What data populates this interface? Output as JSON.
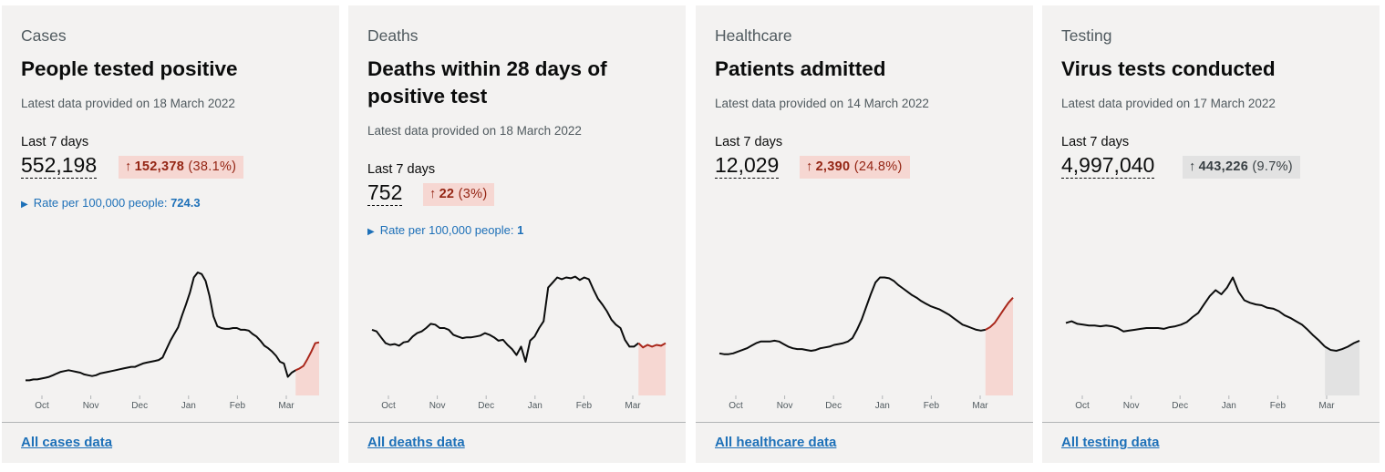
{
  "colors": {
    "accent_red": "#a9271b",
    "highlight_red": "#f6d7d2",
    "neutral": "#0b0c0c",
    "highlight_grey": "#e2e2e2",
    "link": "#1d70b8"
  },
  "cards": [
    {
      "caption": "Cases",
      "headline": "People tested positive",
      "latest": "Latest data provided on 18 March 2022",
      "metric_label": "Last 7 days",
      "metric_value": "552,198",
      "change_arrow": "↑",
      "change_value": "152,378",
      "change_pct": "(38.1%)",
      "change_style": "up",
      "rate_label": "Rate per 100,000 people:",
      "rate_value": "724.3",
      "link": "All cases data",
      "icon": "triangle-right-icon",
      "chart_data": {
        "type": "line",
        "x_ticks": [
          "Oct",
          "Nov",
          "Dec",
          "Jan",
          "Feb",
          "Mar"
        ],
        "ylim": [
          0,
          160
        ],
        "highlight_last_days": 7,
        "series": [
          {
            "values": [
              18,
              18,
              19,
              19,
              20,
              21,
              22,
              24,
              26,
              28,
              29,
              30,
              29,
              28,
              27,
              25,
              24,
              23,
              24,
              26,
              27,
              28,
              29,
              30,
              31,
              32,
              33,
              34,
              34,
              36,
              38,
              39,
              40,
              41,
              42,
              45,
              55,
              65,
              73,
              81,
              95,
              108,
              122,
              140,
              146,
              144,
              136,
              118,
              94,
              82,
              80,
              79,
              79,
              80,
              80,
              78,
              78,
              77,
              73,
              70,
              65,
              59,
              56,
              52,
              47,
              40,
              38,
              22,
              27,
              30,
              32,
              35,
              43,
              52,
              62,
              63
            ]
          }
        ]
      }
    },
    {
      "caption": "Deaths",
      "headline": "Deaths within 28 days of positive test",
      "latest": "Latest data provided on 18 March 2022",
      "metric_label": "Last 7 days",
      "metric_value": "752",
      "change_arrow": "↑",
      "change_value": "22",
      "change_pct": "(3%)",
      "change_style": "up",
      "rate_label": "Rate per 100,000 people:",
      "rate_value": "1",
      "link": "All deaths data",
      "icon": "triangle-right-icon",
      "chart_data": {
        "type": "line",
        "x_ticks": [
          "Oct",
          "Nov",
          "Dec",
          "Jan",
          "Feb",
          "Mar"
        ],
        "ylim": [
          0,
          160
        ],
        "highlight_last_days": 7,
        "series": [
          {
            "values": [
              78,
              76,
              69,
              62,
              60,
              61,
              59,
              63,
              64,
              70,
              74,
              76,
              80,
              85,
              84,
              80,
              80,
              78,
              72,
              70,
              68,
              69,
              69,
              70,
              71,
              74,
              72,
              69,
              65,
              66,
              60,
              55,
              48,
              58,
              40,
              65,
              70,
              80,
              88,
              128,
              134,
              140,
              138,
              140,
              139,
              141,
              137,
              140,
              138,
              126,
              115,
              108,
              100,
              90,
              84,
              80,
              66,
              58,
              58,
              62,
              57,
              60,
              58,
              60,
              59,
              62
            ]
          }
        ]
      }
    },
    {
      "caption": "Healthcare",
      "headline": "Patients admitted",
      "latest": "Latest data provided on 14 March 2022",
      "metric_label": "Last 7 days",
      "metric_value": "12,029",
      "change_arrow": "↑",
      "change_value": "2,390",
      "change_pct": "(24.8%)",
      "change_style": "up",
      "rate_label": "",
      "rate_value": "",
      "link": "All healthcare data",
      "icon": "",
      "chart_data": {
        "type": "line",
        "x_ticks": [
          "Oct",
          "Nov",
          "Dec",
          "Jan",
          "Feb",
          "Mar"
        ],
        "ylim": [
          0,
          160
        ],
        "highlight_last_days": 7,
        "series": [
          {
            "values": [
              50,
              49,
              49,
              50,
              52,
              54,
              56,
              59,
              62,
              64,
              64,
              64,
              65,
              64,
              61,
              58,
              56,
              55,
              55,
              54,
              53,
              54,
              56,
              57,
              58,
              60,
              61,
              62,
              64,
              68,
              78,
              90,
              105,
              120,
              134,
              140,
              140,
              139,
              136,
              131,
              127,
              123,
              119,
              116,
              112,
              109,
              106,
              104,
              102,
              99,
              96,
              92,
              88,
              84,
              82,
              80,
              78,
              77,
              78,
              81,
              86,
              94,
              102,
              110,
              116
            ]
          }
        ]
      }
    },
    {
      "caption": "Testing",
      "headline": "Virus tests conducted",
      "latest": "Latest data provided on 17 March 2022",
      "metric_label": "Last 7 days",
      "metric_value": "4,997,040",
      "change_arrow": "↑",
      "change_value": "443,226",
      "change_pct": "(9.7%)",
      "change_style": "neutral",
      "rate_label": "",
      "rate_value": "",
      "link": "All testing data",
      "icon": "",
      "chart_data": {
        "type": "line",
        "x_ticks": [
          "Oct",
          "Nov",
          "Dec",
          "Jan",
          "Feb",
          "Mar"
        ],
        "ylim": [
          0,
          160
        ],
        "highlight_last_days": 7,
        "series": [
          {
            "values": [
              86,
              88,
              85,
              84,
              83,
              83,
              82,
              83,
              82,
              80,
              76,
              77,
              78,
              79,
              80,
              80,
              80,
              79,
              81,
              82,
              84,
              87,
              93,
              98,
              108,
              118,
              125,
              120,
              128,
              140,
              123,
              113,
              110,
              108,
              107,
              104,
              103,
              100,
              95,
              92,
              88,
              84,
              78,
              71,
              65,
              58,
              54,
              53,
              55,
              58,
              62,
              65
            ]
          }
        ]
      }
    }
  ]
}
